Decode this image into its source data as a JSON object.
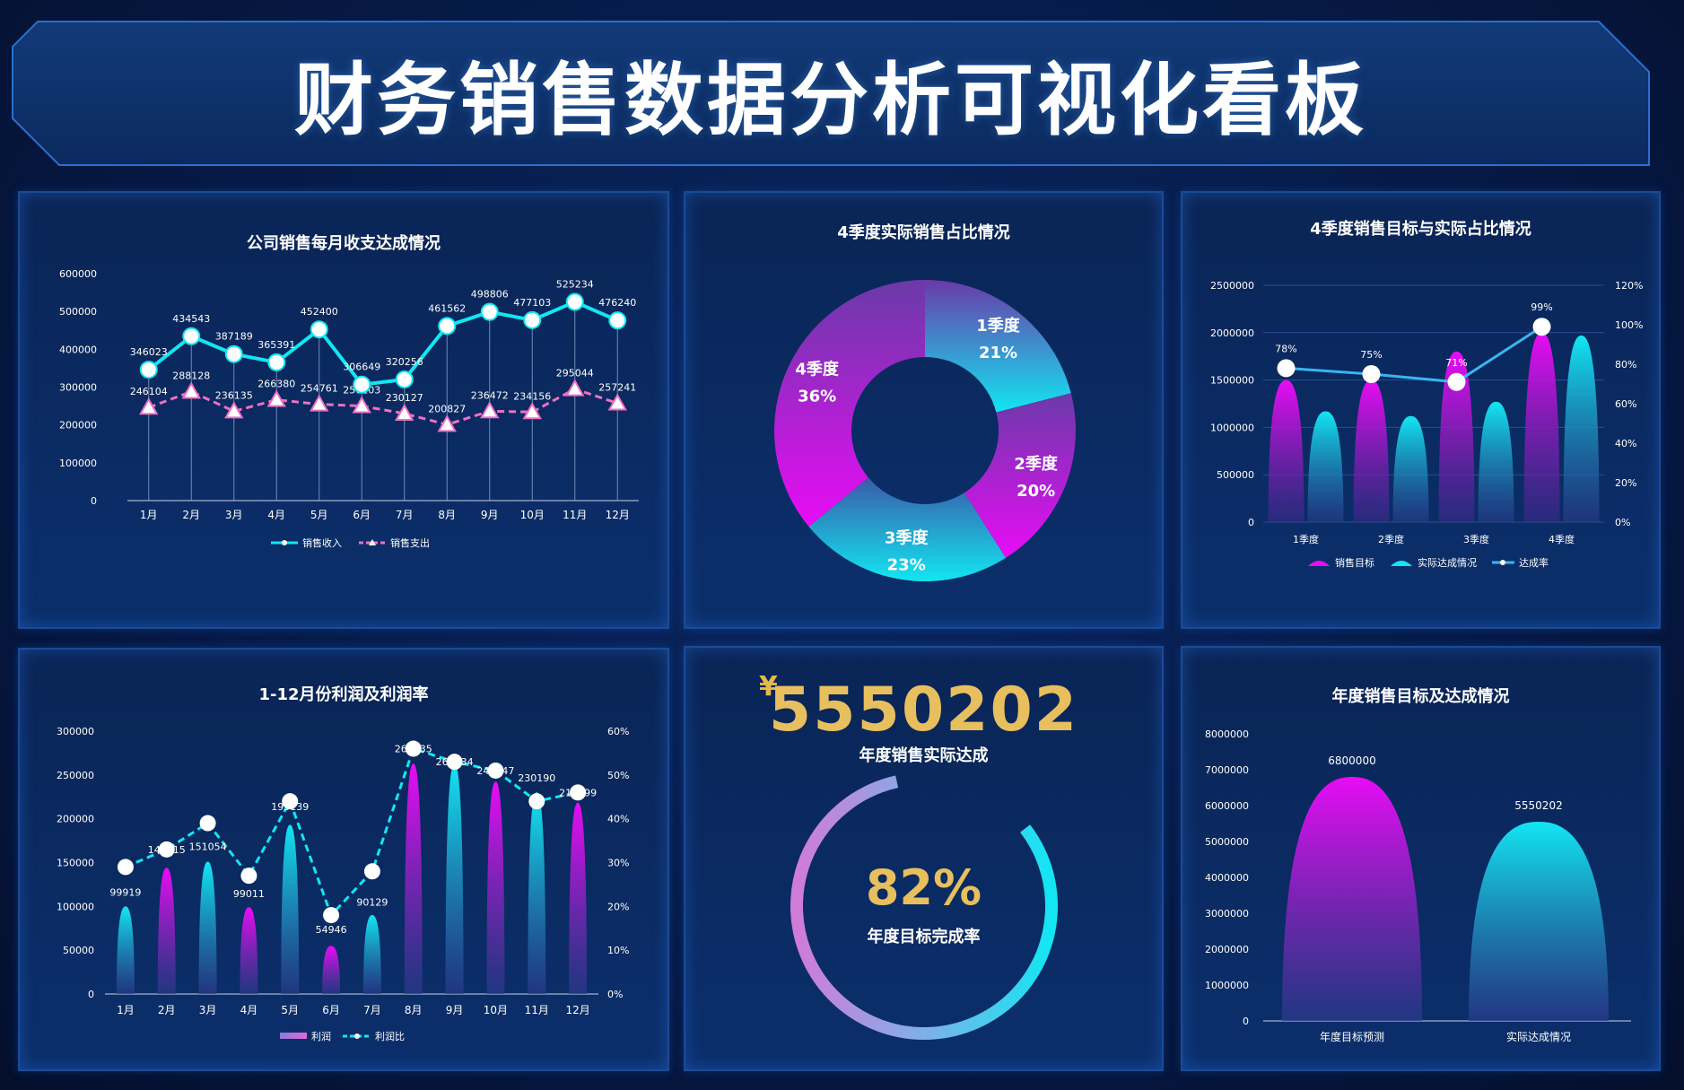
{
  "header": {
    "title": "财务销售数据分析可视化看板"
  },
  "colors": {
    "cyan": "#12e6f2",
    "pink": "#ef6fc3",
    "magenta": "#e80cf5",
    "gold": "#e8bf5e",
    "purple": "#6a3aa8",
    "axis_text": "#ffffff"
  },
  "chart_data": [
    {
      "id": "monthly",
      "type": "line",
      "title": "公司销售每月收支达成情况",
      "categories": [
        "1月",
        "2月",
        "3月",
        "4月",
        "5月",
        "6月",
        "7月",
        "8月",
        "9月",
        "10月",
        "11月",
        "12月"
      ],
      "series": [
        {
          "name": "销售收入",
          "values": [
            346023,
            434543,
            387189,
            365391,
            452400,
            306649,
            320256,
            461562,
            498806,
            477103,
            525234,
            476240
          ]
        },
        {
          "name": "销售支出",
          "values": [
            246104,
            288128,
            236135,
            266380,
            254761,
            250103,
            230127,
            200827,
            236472,
            234156,
            295044,
            257241
          ]
        }
      ],
      "ylim": [
        0,
        600000
      ],
      "yticks": [
        0,
        100000,
        200000,
        300000,
        400000,
        500000,
        600000
      ],
      "legend": "bottom"
    },
    {
      "id": "q4pie",
      "type": "pie",
      "title": "4季度实际销售占比情况",
      "categories": [
        "1季度",
        "2季度",
        "3季度",
        "4季度"
      ],
      "values": [
        21,
        20,
        23,
        36
      ],
      "labels": [
        "21%",
        "20%",
        "23%",
        "36%"
      ]
    },
    {
      "id": "quarter",
      "type": "bar",
      "title": "4季度销售目标与实际占比情况",
      "categories": [
        "1季度",
        "2季度",
        "3季度",
        "4季度"
      ],
      "series": [
        {
          "name": "销售目标",
          "values": [
            1500000,
            1500000,
            1800000,
            2000000
          ]
        },
        {
          "name": "实际达成情况",
          "values": [
            1170000,
            1120000,
            1270000,
            1970000
          ]
        },
        {
          "name": "达成率",
          "values": [
            78,
            75,
            71,
            99
          ],
          "labels": [
            "78%",
            "75%",
            "71%",
            "99%"
          ]
        }
      ],
      "ylim": [
        0,
        2500000
      ],
      "yticks": [
        0,
        500000,
        1000000,
        1500000,
        2000000,
        2500000
      ],
      "y2lim": [
        0,
        120
      ],
      "y2ticks": [
        "0%",
        "20%",
        "40%",
        "60%",
        "80%",
        "100%",
        "120%"
      ],
      "legend": "bottom"
    },
    {
      "id": "profit",
      "type": "bar",
      "title": "1-12月份利润及利润率",
      "categories": [
        "1月",
        "2月",
        "3月",
        "4月",
        "5月",
        "6月",
        "7月",
        "8月",
        "9月",
        "10月",
        "11月",
        "12月"
      ],
      "series": [
        {
          "name": "利润",
          "values": [
            99919,
            144015,
            151054,
            99011,
            193139,
            54946,
            90129,
            262935,
            262334,
            242347,
            230190,
            218399
          ],
          "labels": [
            "99919",
            "144015",
            "151054",
            "99011",
            "193139",
            "54946",
            "90129",
            "262935",
            "262334",
            "242347",
            "230190",
            "218399"
          ]
        },
        {
          "name": "利润比",
          "values": [
            29,
            33,
            39,
            27,
            44,
            18,
            28,
            56,
            53,
            51,
            44,
            46
          ]
        }
      ],
      "ylim": [
        0,
        300000
      ],
      "yticks": [
        0,
        50000,
        100000,
        150000,
        200000,
        250000,
        300000
      ],
      "y2lim": [
        0,
        60
      ],
      "y2ticks": [
        "0%",
        "10%",
        "20%",
        "30%",
        "40%",
        "50%",
        "60%"
      ],
      "legend": "bottom"
    },
    {
      "id": "annual",
      "type": "bar",
      "title": "年度销售目标及达成情况",
      "categories": [
        "年度目标预测",
        "实际达成情况"
      ],
      "values": [
        6800000,
        5550202
      ],
      "labels": [
        "6800000",
        "5550202"
      ],
      "ylim": [
        0,
        8000000
      ],
      "yticks": [
        0,
        1000000,
        2000000,
        3000000,
        4000000,
        5000000,
        6000000,
        7000000,
        8000000
      ]
    }
  ],
  "kpi": {
    "currency": "¥",
    "value": "5550202",
    "label": "年度销售实际达成",
    "ring_percent": "82%",
    "ring_value": 82,
    "ring_label": "年度目标完成率"
  }
}
